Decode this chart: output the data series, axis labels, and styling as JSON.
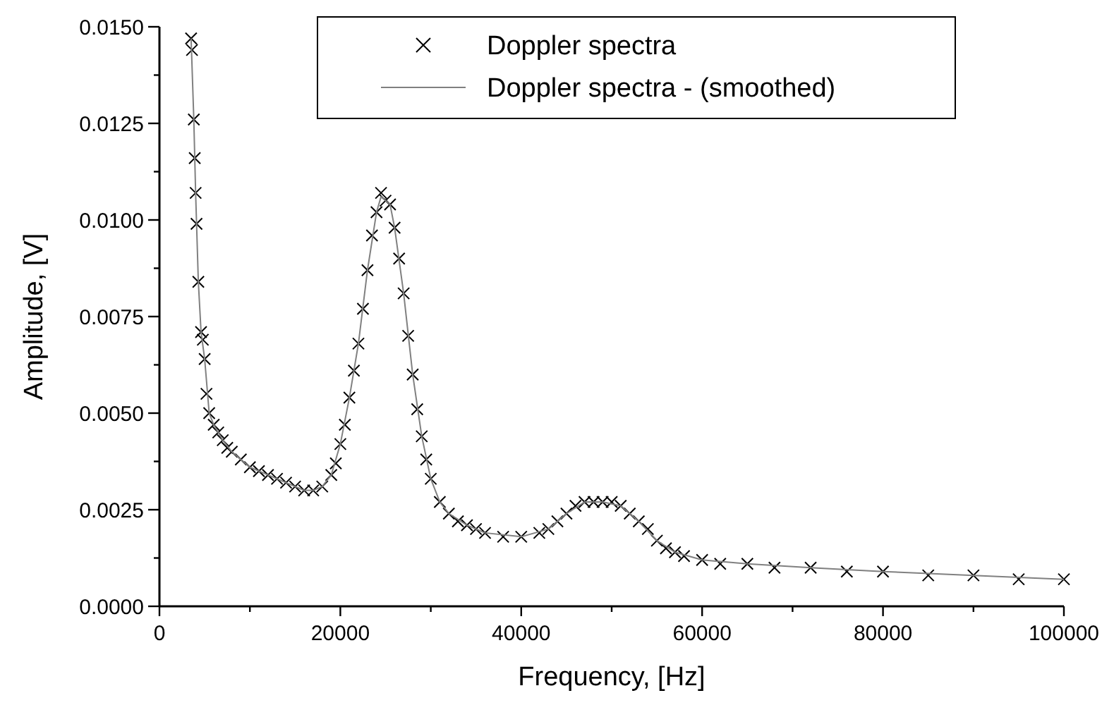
{
  "chart_data": {
    "type": "scatter",
    "xlabel": "Frequency, [Hz]",
    "ylabel": "Amplitude, [V]",
    "xlim": [
      0,
      100000
    ],
    "ylim": [
      0,
      0.015
    ],
    "xticks": [
      0,
      {
        "value": 10000,
        "label": null
      },
      20000,
      {
        "value": 30000,
        "label": null
      },
      40000,
      {
        "value": 50000,
        "label": null
      },
      60000,
      {
        "value": 70000,
        "label": null
      },
      80000,
      {
        "value": 90000,
        "label": null
      },
      100000
    ],
    "yticks": [
      {
        "value": 0,
        "label": "0.0000"
      },
      {
        "value": 0.00125,
        "label": null
      },
      {
        "value": 0.0025,
        "label": "0.0025"
      },
      {
        "value": 0.00375,
        "label": null
      },
      {
        "value": 0.005,
        "label": "0.0050"
      },
      {
        "value": 0.00625,
        "label": null
      },
      {
        "value": 0.0075,
        "label": "0.0075"
      },
      {
        "value": 0.00875,
        "label": null
      },
      {
        "value": 0.01,
        "label": "0.0100"
      },
      {
        "value": 0.01125,
        "label": null
      },
      {
        "value": 0.0125,
        "label": "0.0125"
      },
      {
        "value": 0.01375,
        "label": null
      },
      {
        "value": 0.015,
        "label": "0.0150"
      }
    ],
    "grid": false,
    "legend": "top",
    "series": [
      {
        "name": "Doppler spectra",
        "marker": "cross",
        "color": "#000000",
        "x": [
          3500,
          3600,
          3800,
          3900,
          4000,
          4100,
          4300,
          4600,
          4800,
          5000,
          5200,
          5500,
          6000,
          6500,
          7000,
          7500,
          8000,
          9000,
          10000,
          11000,
          12000,
          13000,
          14000,
          15000,
          16000,
          17000,
          18000,
          19000,
          19500,
          20000,
          20500,
          21000,
          21500,
          22000,
          22500,
          23000,
          23500,
          24000,
          24500,
          25000,
          25500,
          26000,
          26500,
          27000,
          27500,
          28000,
          28500,
          29000,
          29500,
          30000,
          31000,
          32000,
          33000,
          34000,
          35000,
          36000,
          38000,
          40000,
          42000,
          43000,
          44000,
          45000,
          46000,
          47000,
          48000,
          49000,
          50000,
          51000,
          52000,
          53000,
          54000,
          55000,
          56000,
          57000,
          58000,
          60000,
          62000,
          65000,
          68000,
          72000,
          76000,
          80000,
          85000,
          90000,
          95000,
          100000
        ],
        "values": [
          0.0147,
          0.0144,
          0.0126,
          0.0116,
          0.0107,
          0.0099,
          0.0084,
          0.0071,
          0.0069,
          0.0064,
          0.0055,
          0.005,
          0.0047,
          0.0045,
          0.0043,
          0.0041,
          0.004,
          0.0038,
          0.0036,
          0.0035,
          0.0034,
          0.0033,
          0.0032,
          0.0031,
          0.003,
          0.003,
          0.0031,
          0.0034,
          0.0037,
          0.0042,
          0.0047,
          0.0054,
          0.0061,
          0.0068,
          0.0077,
          0.0087,
          0.0096,
          0.0102,
          0.0107,
          0.0105,
          0.0104,
          0.0098,
          0.009,
          0.0081,
          0.007,
          0.006,
          0.0051,
          0.0044,
          0.0038,
          0.0033,
          0.0027,
          0.0024,
          0.0022,
          0.0021,
          0.002,
          0.0019,
          0.0018,
          0.0018,
          0.0019,
          0.002,
          0.0022,
          0.0024,
          0.0026,
          0.0027,
          0.0027,
          0.0027,
          0.0027,
          0.0026,
          0.0024,
          0.0022,
          0.002,
          0.0017,
          0.0015,
          0.0014,
          0.0013,
          0.0012,
          0.0011,
          0.0011,
          0.001,
          0.001,
          0.0009,
          0.0009,
          0.0008,
          0.0008,
          0.0007,
          0.0007
        ]
      },
      {
        "name": "Doppler spectra - (smoothed)",
        "type": "line",
        "marker": "none",
        "line_style": "solid",
        "color": "#808080",
        "x": [
          3500,
          3800,
          4000,
          4300,
          4600,
          5000,
          5500,
          6000,
          7000,
          8000,
          10000,
          12000,
          14000,
          16000,
          17000,
          18000,
          19000,
          20000,
          21000,
          22000,
          23000,
          24000,
          24500,
          25000,
          25500,
          26000,
          27000,
          28000,
          29000,
          30000,
          31000,
          32000,
          34000,
          36000,
          40000,
          43000,
          45000,
          47000,
          49000,
          51000,
          53000,
          55000,
          57000,
          60000,
          65000,
          72000,
          80000,
          90000,
          100000
        ],
        "values": [
          0.0147,
          0.0126,
          0.0107,
          0.0084,
          0.0071,
          0.0064,
          0.005,
          0.0047,
          0.0043,
          0.004,
          0.0036,
          0.0034,
          0.0032,
          0.003,
          0.003,
          0.0031,
          0.0034,
          0.0042,
          0.0054,
          0.0068,
          0.0087,
          0.0102,
          0.0106,
          0.0105,
          0.0104,
          0.0098,
          0.0081,
          0.006,
          0.0044,
          0.0033,
          0.0027,
          0.0024,
          0.0021,
          0.0019,
          0.0018,
          0.002,
          0.0024,
          0.0027,
          0.0027,
          0.0026,
          0.0022,
          0.0017,
          0.0014,
          0.0012,
          0.0011,
          0.001,
          0.0009,
          0.0008,
          0.0007
        ]
      }
    ]
  }
}
